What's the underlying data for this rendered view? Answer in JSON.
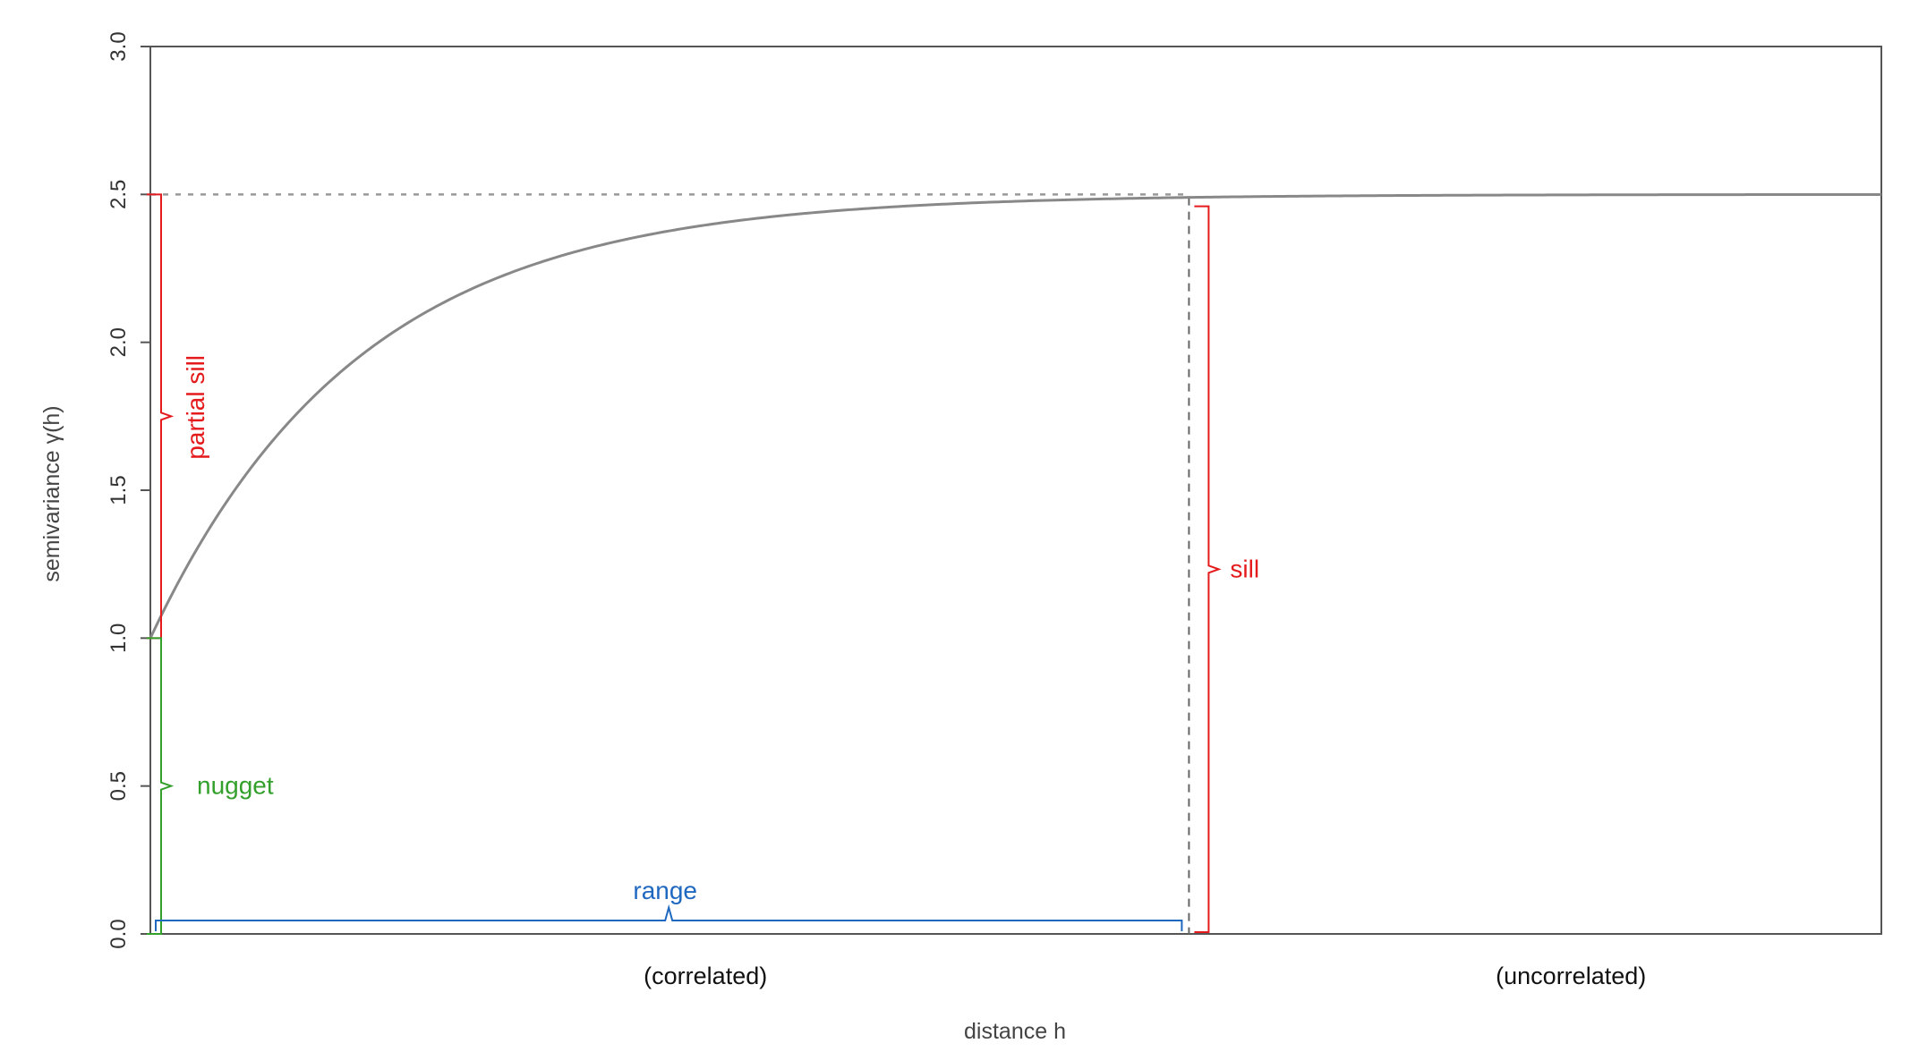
{
  "chart_data": {
    "type": "line",
    "title": "",
    "xlabel": "distance h",
    "ylabel": "semivariance γ(h)",
    "ylim": [
      0,
      3.0
    ],
    "yticks": [
      "0.0",
      "0.5",
      "1.0",
      "1.5",
      "2.0",
      "2.5",
      "3.0"
    ],
    "x_tick_labels_shown": false,
    "grid": false,
    "model": {
      "name": "exponential",
      "nugget": 1.0,
      "partial_sill": 1.5,
      "sill": 2.5,
      "range": 0.6
    },
    "xlim": [
      0,
      1.0
    ],
    "series": [
      {
        "values_from_model": true,
        "color": "#888888"
      }
    ],
    "regions": [
      {
        "label": "(correlated)",
        "center_x": 0.3
      },
      {
        "label": "(uncorrelated)",
        "center_x": 0.8
      }
    ],
    "annotations": {
      "partial_sill": {
        "label": "partial sill",
        "from": 1.0,
        "to": 2.5,
        "color": "#e41a1c"
      },
      "nugget": {
        "label": "nugget",
        "from": 0.0,
        "to": 1.0,
        "color": "#33a02c"
      },
      "sill": {
        "label": "sill",
        "from": 0.0,
        "to": 2.5,
        "color": "#e41a1c"
      },
      "range": {
        "label": "range",
        "from": 0.0,
        "to": 0.6,
        "color": "#1f68c0"
      }
    }
  }
}
